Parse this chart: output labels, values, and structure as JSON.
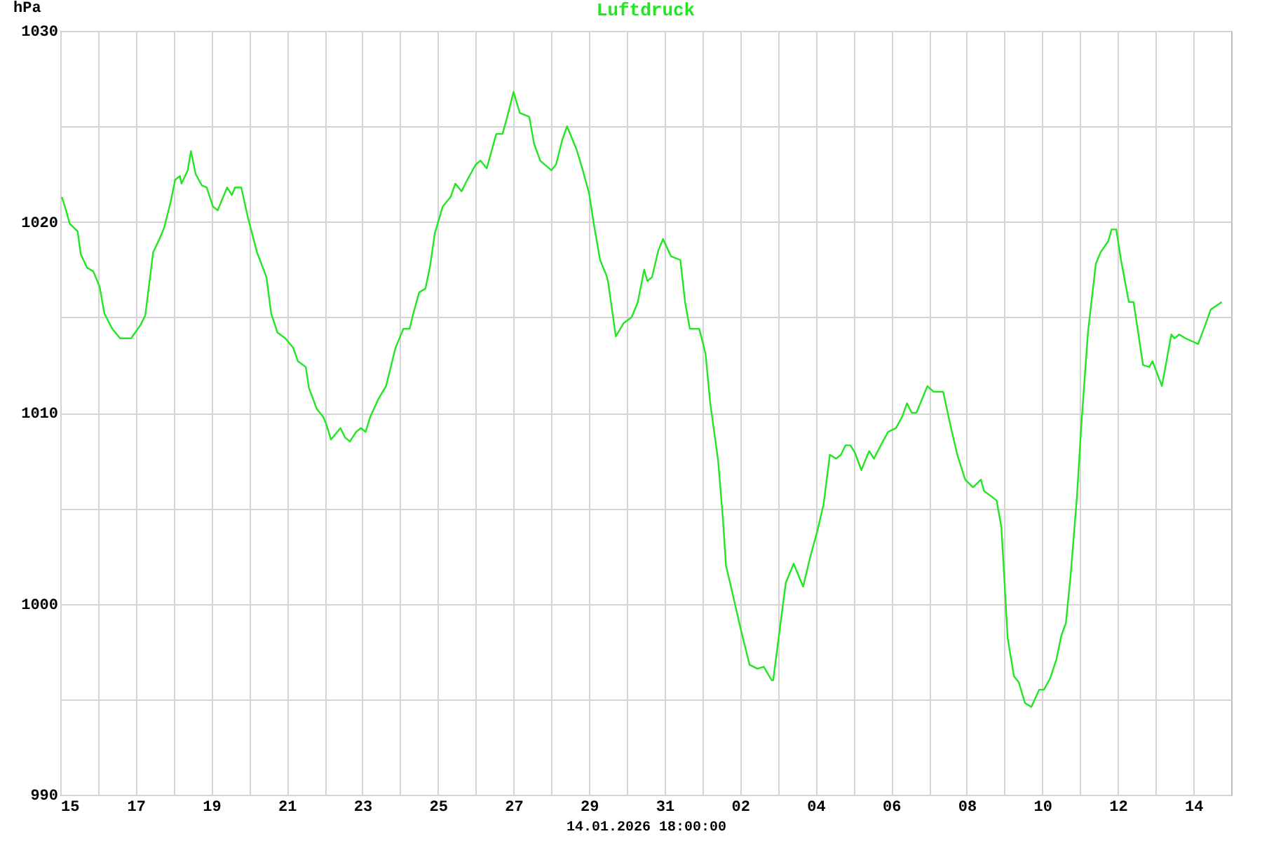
{
  "chart_data": {
    "type": "line",
    "title": "Luftdruck",
    "ylabel": "hPa",
    "xlabel": "14.01.2026 18:00:00",
    "xlim": [
      "2025-12-15T00:00",
      "2026-01-15T00:00"
    ],
    "xticks": [
      {
        "value": "2025-12-15T00:00",
        "label": "15"
      },
      {
        "value": "2025-12-16T00:00",
        "label": null
      },
      {
        "value": "2025-12-17T00:00",
        "label": "17"
      },
      {
        "value": "2025-12-18T00:00",
        "label": null
      },
      {
        "value": "2025-12-19T00:00",
        "label": "19"
      },
      {
        "value": "2025-12-20T00:00",
        "label": null
      },
      {
        "value": "2025-12-21T00:00",
        "label": "21"
      },
      {
        "value": "2025-12-22T00:00",
        "label": null
      },
      {
        "value": "2025-12-23T00:00",
        "label": "23"
      },
      {
        "value": "2025-12-24T00:00",
        "label": null
      },
      {
        "value": "2025-12-25T00:00",
        "label": "25"
      },
      {
        "value": "2025-12-26T00:00",
        "label": null
      },
      {
        "value": "2025-12-27T00:00",
        "label": "27"
      },
      {
        "value": "2025-12-28T00:00",
        "label": null
      },
      {
        "value": "2025-12-29T00:00",
        "label": "29"
      },
      {
        "value": "2025-12-30T00:00",
        "label": null
      },
      {
        "value": "2025-12-31T00:00",
        "label": "31"
      },
      {
        "value": "2026-01-01T00:00",
        "label": null
      },
      {
        "value": "2026-01-02T00:00",
        "label": "02"
      },
      {
        "value": "2026-01-03T00:00",
        "label": null
      },
      {
        "value": "2026-01-04T00:00",
        "label": "04"
      },
      {
        "value": "2026-01-05T00:00",
        "label": null
      },
      {
        "value": "2026-01-06T00:00",
        "label": "06"
      },
      {
        "value": "2026-01-07T00:00",
        "label": null
      },
      {
        "value": "2026-01-08T00:00",
        "label": "08"
      },
      {
        "value": "2026-01-09T00:00",
        "label": null
      },
      {
        "value": "2026-01-10T00:00",
        "label": "10"
      },
      {
        "value": "2026-01-11T00:00",
        "label": null
      },
      {
        "value": "2026-01-12T00:00",
        "label": "12"
      },
      {
        "value": "2026-01-13T00:00",
        "label": null
      },
      {
        "value": "2026-01-14T00:00",
        "label": "14"
      }
    ],
    "ylim": [
      990,
      1030
    ],
    "yticks": [
      990,
      {
        "value": 995,
        "label": null
      },
      1000,
      {
        "value": 1005,
        "label": null
      },
      1010,
      {
        "value": 1015,
        "label": null
      },
      1020,
      {
        "value": 1025,
        "label": null
      },
      1030
    ],
    "grid": true,
    "x": [
      "2025-12-15T01:00",
      "2025-12-15T04:00",
      "2025-12-15T06:00",
      "2025-12-15T11:00",
      "2025-12-15T13:00",
      "2025-12-15T17:00",
      "2025-12-15T21:00",
      "2025-12-16T01:00",
      "2025-12-16T04:00",
      "2025-12-16T09:00",
      "2025-12-16T14:00",
      "2025-12-16T21:00",
      "2025-12-17T03:00",
      "2025-12-17T06:00",
      "2025-12-17T11:00",
      "2025-12-17T15:00",
      "2025-12-17T18:00",
      "2025-12-17T22:00",
      "2025-12-18T01:00",
      "2025-12-18T04:00",
      "2025-12-18T05:00",
      "2025-12-18T09:00",
      "2025-12-18T11:00",
      "2025-12-18T14:00",
      "2025-12-18T18:00",
      "2025-12-18T21:00",
      "2025-12-19T01:00",
      "2025-12-19T04:00",
      "2025-12-19T10:00",
      "2025-12-19T13:00",
      "2025-12-19T15:00",
      "2025-12-19T19:00",
      "2025-12-19T23:00",
      "2025-12-20T05:00",
      "2025-12-20T11:00",
      "2025-12-20T14:00",
      "2025-12-20T18:00",
      "2025-12-20T23:00",
      "2025-12-21T04:00",
      "2025-12-21T07:00",
      "2025-12-21T12:00",
      "2025-12-21T14:00",
      "2025-12-21T19:00",
      "2025-12-21T23:00",
      "2025-12-22T01:00",
      "2025-12-22T04:00",
      "2025-12-22T08:00",
      "2025-12-22T10:00",
      "2025-12-22T13:00",
      "2025-12-22T16:00",
      "2025-12-22T20:00",
      "2025-12-22T23:00",
      "2025-12-23T02:00",
      "2025-12-23T05:00",
      "2025-12-23T10:00",
      "2025-12-23T15:00",
      "2025-12-23T21:00",
      "2025-12-24T02:00",
      "2025-12-24T06:00",
      "2025-12-24T08:00",
      "2025-12-24T12:00",
      "2025-12-24T16:00",
      "2025-12-24T19:00",
      "2025-12-24T22:00",
      "2025-12-25T03:00",
      "2025-12-25T08:00",
      "2025-12-25T11:00",
      "2025-12-25T15:00",
      "2025-12-25T18:00",
      "2025-12-26T00:00",
      "2025-12-26T03:00",
      "2025-12-26T07:00",
      "2025-12-26T10:00",
      "2025-12-26T13:00",
      "2025-12-26T17:00",
      "2025-12-26T20:00",
      "2025-12-27T00:00",
      "2025-12-27T04:00",
      "2025-12-27T10:00",
      "2025-12-27T13:00",
      "2025-12-27T17:00",
      "2025-12-28T00:00",
      "2025-12-28T03:00",
      "2025-12-28T07:00",
      "2025-12-28T10:00",
      "2025-12-28T16:00",
      "2025-12-28T20:00",
      "2025-12-29T00:00",
      "2025-12-29T03:00",
      "2025-12-29T07:00",
      "2025-12-29T11:00",
      "2025-12-29T12:00",
      "2025-12-29T17:00",
      "2025-12-29T22:00",
      "2025-12-30T03:00",
      "2025-12-30T07:00",
      "2025-12-30T11:00",
      "2025-12-30T13:00",
      "2025-12-30T16:00",
      "2025-12-30T20:00",
      "2025-12-30T23:00",
      "2025-12-31T04:00",
      "2025-12-31T10:00",
      "2025-12-31T13:00",
      "2025-12-31T16:00",
      "2025-12-31T22:00",
      "2026-01-01T02:00",
      "2026-01-01T05:00",
      "2026-01-01T10:00",
      "2026-01-01T13:00",
      "2026-01-01T15:00",
      "2026-01-01T19:00",
      "2026-01-02T00:00",
      "2026-01-02T06:00",
      "2026-01-02T11:00",
      "2026-01-02T15:00",
      "2026-01-02T20:00",
      "2026-01-02T21:00",
      "2026-01-03T02:00",
      "2026-01-03T05:00",
      "2026-01-03T10:00",
      "2026-01-03T16:00",
      "2026-01-03T21:00",
      "2026-01-04T01:00",
      "2026-01-04T05:00",
      "2026-01-04T09:00",
      "2026-01-04T13:00",
      "2026-01-04T16:00",
      "2026-01-04T19:00",
      "2026-01-04T22:00",
      "2026-01-05T01:00",
      "2026-01-05T05:00",
      "2026-01-05T10:00",
      "2026-01-05T13:00",
      "2026-01-05T18:00",
      "2026-01-05T22:00",
      "2026-01-06T03:00",
      "2026-01-06T07:00",
      "2026-01-06T10:00",
      "2026-01-06T13:00",
      "2026-01-06T16:00",
      "2026-01-06T23:00",
      "2026-01-07T03:00",
      "2026-01-07T09:00",
      "2026-01-07T14:00",
      "2026-01-07T18:00",
      "2026-01-07T23:00",
      "2026-01-08T04:00",
      "2026-01-08T09:00",
      "2026-01-08T11:00",
      "2026-01-08T16:00",
      "2026-01-08T19:00",
      "2026-01-08T22:00",
      "2026-01-09T02:00",
      "2026-01-09T06:00",
      "2026-01-09T09:00",
      "2026-01-09T13:00",
      "2026-01-09T17:00",
      "2026-01-09T22:00",
      "2026-01-10T01:00",
      "2026-01-10T05:00",
      "2026-01-10T09:00",
      "2026-01-10T12:00",
      "2026-01-10T15:00",
      "2026-01-10T18:00",
      "2026-01-10T22:00",
      "2026-01-11T01:00",
      "2026-01-11T05:00",
      "2026-01-11T10:00",
      "2026-01-11T13:00",
      "2026-01-11T18:00",
      "2026-01-11T20:00",
      "2026-01-11T23:00",
      "2026-01-12T02:00",
      "2026-01-12T07:00",
      "2026-01-12T10:00",
      "2026-01-12T16:00",
      "2026-01-12T20:00",
      "2026-01-12T22:00",
      "2026-01-13T04:00",
      "2026-01-13T10:00",
      "2026-01-13T12:00",
      "2026-01-13T15:00",
      "2026-01-13T19:00",
      "2026-01-14T03:00",
      "2026-01-14T08:00",
      "2026-01-14T11:00",
      "2026-01-14T18:00"
    ],
    "series": [
      {
        "color": "#22e622",
        "values": [
          1021.3,
          1020.5,
          1019.9,
          1019.5,
          1018.3,
          1017.6,
          1017.4,
          1016.6,
          1015.2,
          1014.4,
          1013.9,
          1013.9,
          1014.6,
          1015.1,
          1018.4,
          1019.1,
          1019.7,
          1021.0,
          1022.2,
          1022.4,
          1022.0,
          1022.7,
          1023.7,
          1022.5,
          1021.9,
          1021.8,
          1020.8,
          1020.6,
          1021.8,
          1021.4,
          1021.8,
          1021.8,
          1020.3,
          1018.4,
          1017.1,
          1015.2,
          1014.2,
          1013.9,
          1013.4,
          1012.7,
          1012.4,
          1011.3,
          1010.2,
          1009.8,
          1009.4,
          1008.6,
          1009.0,
          1009.2,
          1008.7,
          1008.5,
          1009.0,
          1009.2,
          1009.0,
          1009.8,
          1010.7,
          1011.4,
          1013.4,
          1014.4,
          1014.4,
          1015.1,
          1016.3,
          1016.5,
          1017.7,
          1019.4,
          1020.8,
          1021.3,
          1022.0,
          1021.6,
          1022.1,
          1023.0,
          1023.2,
          1022.8,
          1023.7,
          1024.6,
          1024.6,
          1025.5,
          1026.8,
          1025.7,
          1025.5,
          1024.1,
          1023.2,
          1022.7,
          1023.0,
          1024.3,
          1025.0,
          1023.8,
          1022.7,
          1021.5,
          1019.9,
          1018.0,
          1017.2,
          1016.9,
          1014.0,
          1014.7,
          1015.0,
          1015.8,
          1017.5,
          1016.9,
          1017.1,
          1018.5,
          1019.1,
          1018.2,
          1018.0,
          1015.8,
          1014.4,
          1014.4,
          1013.1,
          1010.5,
          1007.5,
          1004.5,
          1002.0,
          1000.6,
          998.8,
          996.8,
          996.6,
          996.7,
          996.0,
          996.0,
          999.2,
          1001.1,
          1002.1,
          1000.9,
          1002.6,
          1003.8,
          1005.2,
          1007.8,
          1007.6,
          1007.8,
          1008.3,
          1008.3,
          1007.9,
          1007.0,
          1008.0,
          1007.6,
          1008.4,
          1009.0,
          1009.2,
          1009.8,
          1010.5,
          1010.0,
          1010.0,
          1011.4,
          1011.1,
          1011.1,
          1009.2,
          1007.8,
          1006.5,
          1006.1,
          1006.5,
          1005.9,
          1005.6,
          1005.4,
          1004.0,
          998.2,
          996.2,
          995.9,
          994.8,
          994.6,
          995.5,
          995.5,
          996.1,
          997.1,
          998.3,
          999.0,
          1001.5,
          1005.6,
          1009.6,
          1014.2,
          1017.8,
          1018.4,
          1019.0,
          1019.6,
          1019.6,
          1018.0,
          1015.8,
          1015.8,
          1012.5,
          1012.4,
          1012.7,
          1011.4,
          1014.1,
          1013.9,
          1014.1,
          1013.9,
          1013.6,
          1014.7,
          1015.4,
          1015.8
        ]
      }
    ]
  }
}
